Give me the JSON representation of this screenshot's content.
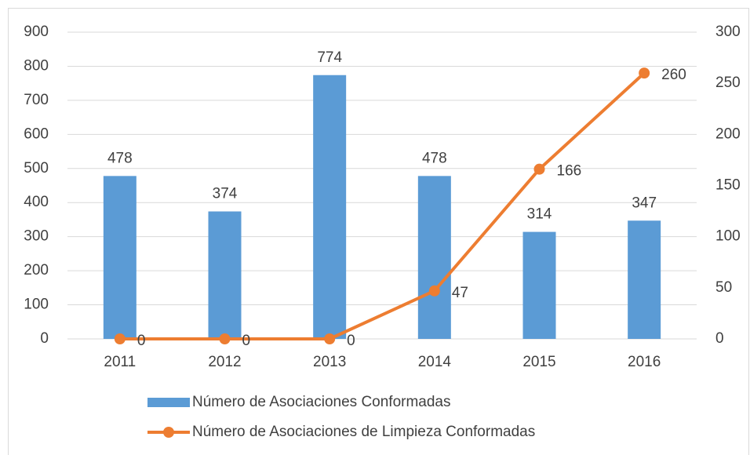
{
  "chart_data": {
    "type": "combo",
    "categories": [
      "2011",
      "2012",
      "2013",
      "2014",
      "2015",
      "2016"
    ],
    "series": [
      {
        "name": "Número de Asociaciones Conformadas",
        "type": "bar",
        "color": "#5b9bd5",
        "values": [
          478,
          374,
          774,
          478,
          314,
          347
        ]
      },
      {
        "name": "Número de Asociaciones de Limpieza Conformadas",
        "type": "line",
        "axis": "y2",
        "color": "#ed7d31",
        "values": [
          0,
          0,
          0,
          47,
          166,
          260
        ]
      }
    ],
    "ylim": [
      0,
      900
    ],
    "yticks": [
      0,
      100,
      200,
      300,
      400,
      500,
      600,
      700,
      800,
      900
    ],
    "y2lim": [
      0,
      300
    ],
    "y2ticks": [
      0,
      50,
      100,
      150,
      200,
      250,
      300
    ],
    "grid": true,
    "legend": "bottom"
  }
}
